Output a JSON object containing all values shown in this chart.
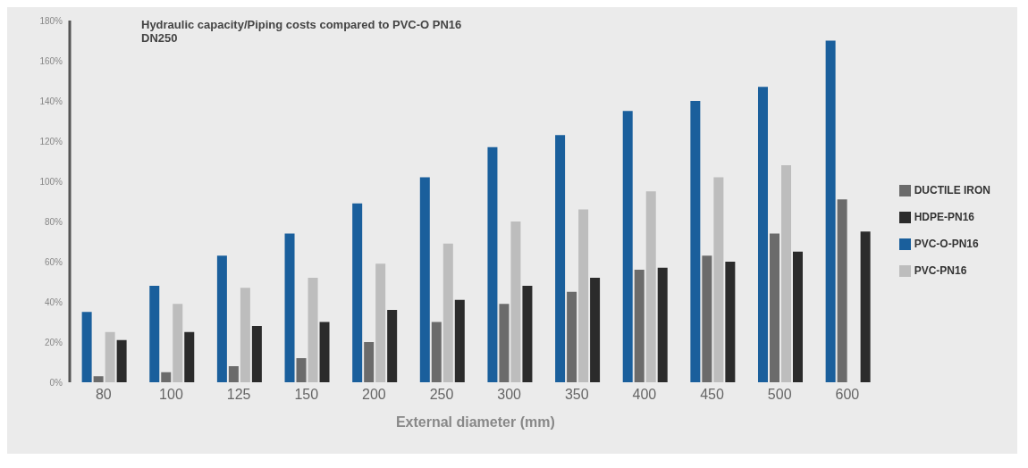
{
  "chart_data": {
    "type": "bar",
    "title": "Hydraulic capacity/Piping costs compared to PVC-O PN16 DN250",
    "xlabel": "External diameter (mm)",
    "categories": [
      "80",
      "100",
      "125",
      "150",
      "200",
      "250",
      "300",
      "350",
      "400",
      "450",
      "500",
      "600"
    ],
    "series": [
      {
        "name": "PVC-O-PN16",
        "color": "#1a5f9c",
        "values": [
          35,
          48,
          63,
          74,
          89,
          102,
          117,
          123,
          135,
          140,
          147,
          170
        ]
      },
      {
        "name": "DUCTILE IRON",
        "color": "#6b6b6b",
        "values": [
          3,
          5,
          8,
          12,
          20,
          30,
          39,
          45,
          56,
          63,
          74,
          91
        ]
      },
      {
        "name": "PVC-PN16",
        "color": "#bdbdbd",
        "values": [
          25,
          39,
          47,
          52,
          59,
          69,
          80,
          86,
          95,
          102,
          108,
          null
        ]
      },
      {
        "name": "HDPE-PN16",
        "color": "#2b2b2b",
        "values": [
          21,
          25,
          28,
          30,
          36,
          41,
          48,
          52,
          57,
          60,
          65,
          75
        ]
      }
    ],
    "ylim": [
      0,
      180
    ],
    "yticks": [
      {
        "value": 0,
        "label": "0%"
      },
      {
        "value": 20,
        "label": "20%"
      },
      {
        "value": 40,
        "label": "40%"
      },
      {
        "value": 60,
        "label": "60%"
      },
      {
        "value": 80,
        "label": "80%"
      },
      {
        "value": 100,
        "label": "100%"
      },
      {
        "value": 120,
        "label": "120%"
      },
      {
        "value": 140,
        "label": "140%"
      },
      {
        "value": 160,
        "label": "160%"
      },
      {
        "value": 180,
        "label": "180%"
      }
    ],
    "grid": false,
    "legend": "right"
  }
}
